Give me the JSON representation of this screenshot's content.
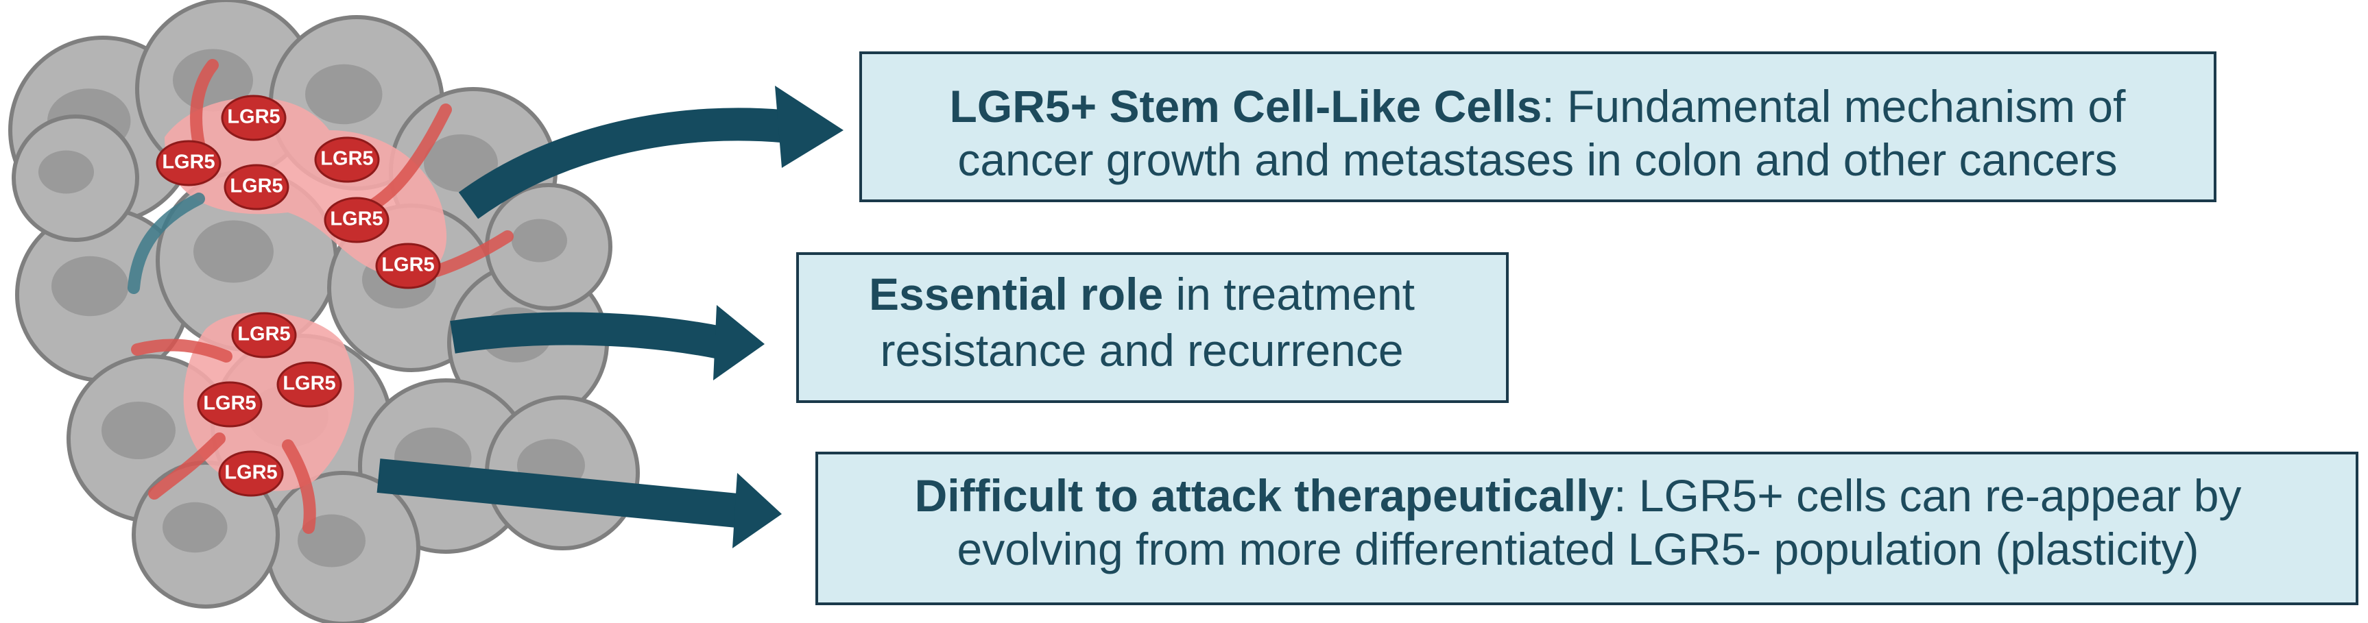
{
  "cell_labels": [
    "LGR5",
    "LGR5",
    "LGR5",
    "LGR5",
    "LGR5",
    "LGR5",
    "LGR5",
    "LGR5",
    "LGR5",
    "LGR5"
  ],
  "boxes": [
    {
      "bold": "LGR5+ Stem Cell-Like Cells",
      "line1": ": Fundamental mechanism of",
      "line2": "cancer growth and metastases in colon and other cancers"
    },
    {
      "bold": "Essential role",
      "line1": " in treatment",
      "line2": "resistance and recurrence"
    },
    {
      "bold": "Difficult to attack therapeutically",
      "line1": ": LGR5+ cells can re-appear by",
      "line2": "evolving from more differentiated LGR5- population (plasticity)"
    }
  ]
}
